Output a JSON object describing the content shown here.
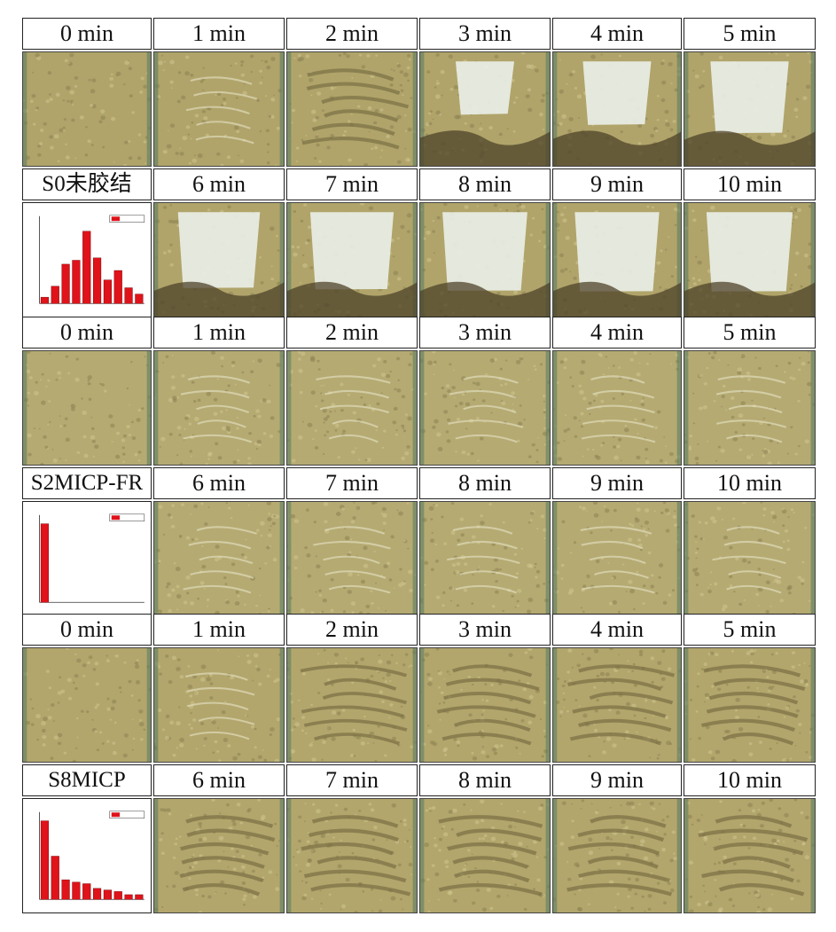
{
  "panels": [
    {
      "sample": "S0未胶结",
      "top_labels": [
        "0 min",
        "1 min",
        "2 min",
        "3 min",
        "4 min",
        "5 min"
      ],
      "bottom_labels": [
        "6 min",
        "7 min",
        "8 min",
        "9 min",
        "10 min"
      ],
      "damage": [
        0.05,
        0.2,
        0.4,
        0.55,
        0.7,
        0.82,
        0.88,
        0.9,
        0.92,
        0.93,
        0.93
      ],
      "histogram": [
        0.08,
        0.22,
        0.5,
        0.55,
        0.92,
        0.58,
        0.3,
        0.42,
        0.2,
        0.12
      ],
      "colors": {
        "soil": "#b0a46a",
        "white": "#e9eee6",
        "dark": "#4d432a"
      }
    },
    {
      "sample": "S2MICP-FR",
      "top_labels": [
        "0 min",
        "1 min",
        "2 min",
        "3 min",
        "4 min",
        "5 min"
      ],
      "bottom_labels": [
        "6 min",
        "7 min",
        "8 min",
        "9 min",
        "10 min"
      ],
      "damage": [
        0.05,
        0.1,
        0.12,
        0.14,
        0.15,
        0.16,
        0.17,
        0.17,
        0.18,
        0.18,
        0.18
      ],
      "histogram": [
        1.0,
        0,
        0,
        0,
        0,
        0,
        0,
        0,
        0,
        0
      ],
      "colors": {
        "soil": "#b5aa72",
        "white": "#e9eee6",
        "dark": "#4d432a"
      }
    },
    {
      "sample": "S8MICP",
      "top_labels": [
        "0 min",
        "1 min",
        "2 min",
        "3 min",
        "4 min",
        "5 min"
      ],
      "bottom_labels": [
        "6 min",
        "7 min",
        "8 min",
        "9 min",
        "10 min"
      ],
      "damage": [
        0.0,
        0.2,
        0.3,
        0.35,
        0.38,
        0.4,
        0.42,
        0.43,
        0.44,
        0.44,
        0.45
      ],
      "histogram": [
        1.0,
        0.55,
        0.25,
        0.22,
        0.2,
        0.14,
        0.12,
        0.1,
        0.06,
        0.06
      ],
      "colors": {
        "soil": "#b2a66c",
        "white": "#e9eee6",
        "dark": "#4d432a"
      }
    }
  ]
}
